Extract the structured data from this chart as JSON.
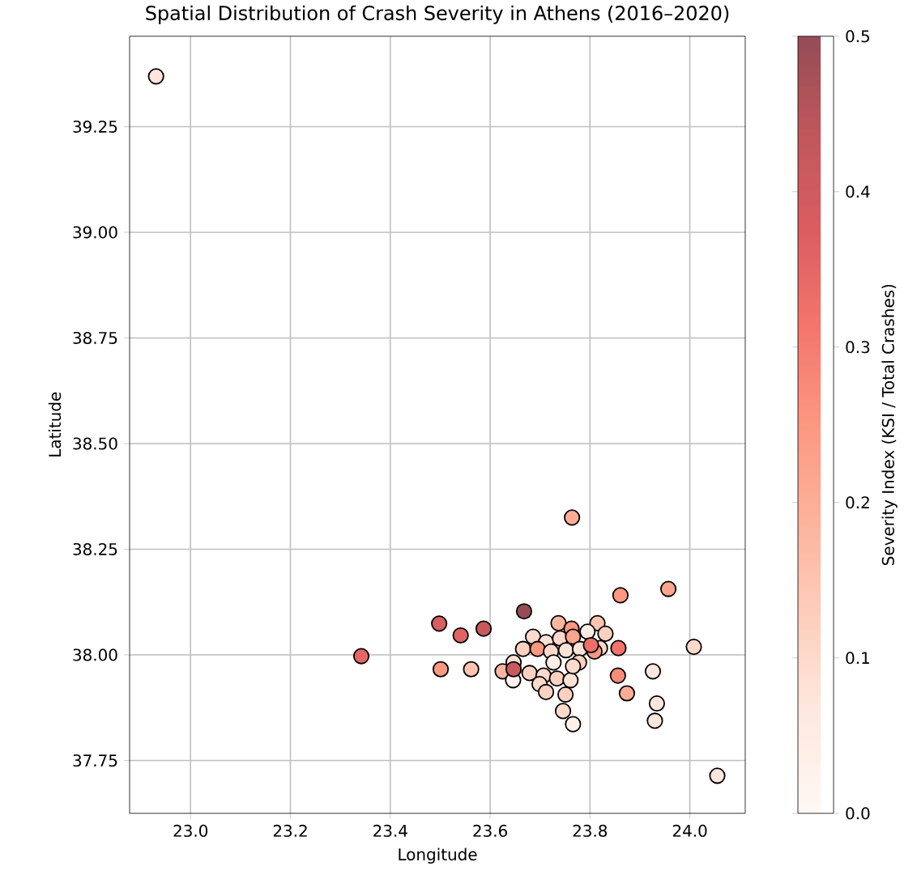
{
  "chart_data": {
    "type": "scatter",
    "title": "Spatial Distribution of Crash Severity in Athens (2016–2020)",
    "xlabel": "Longitude",
    "ylabel": "Latitude",
    "clabel": "Severity Index (KSI / Total Crashes)",
    "x": [
      23.342,
      23.498,
      23.541,
      23.587,
      23.668,
      23.501,
      23.562,
      23.625,
      23.646,
      23.861,
      23.957,
      24.008,
      23.926,
      23.934,
      23.93,
      24.055,
      23.857,
      23.856,
      23.874,
      23.746,
      23.766,
      23.737,
      23.763,
      23.815,
      23.795,
      23.831,
      23.686,
      23.712,
      23.74,
      23.766,
      23.666,
      23.695,
      23.722,
      23.752,
      23.78,
      23.82,
      23.727,
      23.679,
      23.707,
      23.734,
      23.761,
      23.699,
      23.712,
      23.751,
      23.647,
      23.778,
      22.931,
      23.764,
      23.766,
      23.809,
      23.802,
      23.647
    ],
    "values": [
      37.997,
      38.074,
      38.046,
      38.062,
      38.103,
      37.966,
      37.966,
      37.961,
      37.94,
      38.141,
      38.156,
      38.019,
      37.961,
      37.885,
      37.844,
      37.714,
      38.016,
      37.951,
      37.909,
      37.867,
      37.836,
      38.075,
      38.062,
      38.075,
      38.055,
      38.05,
      38.043,
      38.03,
      38.039,
      38.043,
      38.014,
      38.014,
      38.008,
      38.011,
      38.014,
      38.016,
      37.982,
      37.957,
      37.951,
      37.944,
      37.94,
      37.931,
      37.912,
      37.906,
      37.982,
      37.982,
      39.369,
      38.325,
      37.973,
      38.008,
      38.023,
      37.966
    ],
    "cvalues": [
      0.35,
      0.38,
      0.36,
      0.42,
      0.5,
      0.25,
      0.15,
      0.18,
      0.02,
      0.25,
      0.22,
      0.1,
      0.07,
      0.07,
      0.07,
      0.07,
      0.32,
      0.27,
      0.2,
      0.1,
      0.03,
      0.18,
      0.25,
      0.15,
      0.05,
      0.12,
      0.1,
      0.08,
      0.1,
      0.22,
      0.12,
      0.25,
      0.1,
      0.08,
      0.08,
      0.1,
      0.04,
      0.12,
      0.1,
      0.12,
      0.08,
      0.1,
      0.12,
      0.12,
      0.08,
      0.12,
      0.07,
      0.2,
      0.1,
      0.25,
      0.33,
      0.42
    ],
    "xlim": [
      22.878,
      24.111
    ],
    "ylim": [
      37.625,
      39.464
    ],
    "xticks": [
      {
        "value": 23.0,
        "label": "23.0"
      },
      23.2,
      23.4,
      23.6,
      23.8,
      {
        "value": 24.0,
        "label": "24.0"
      }
    ],
    "yticks": [
      37.75,
      {
        "value": 38.0,
        "label": "38.00"
      },
      38.25,
      {
        "value": 38.5,
        "label": "38.50"
      },
      38.75,
      {
        "value": 39.0,
        "label": "39.00"
      },
      39.25
    ],
    "clim": [
      0,
      0.5
    ],
    "cticks": [
      {
        "value": 0,
        "label": "0.0"
      },
      0.1,
      0.2,
      0.3,
      0.4,
      0.5
    ],
    "grid": true,
    "marker": "circle"
  }
}
